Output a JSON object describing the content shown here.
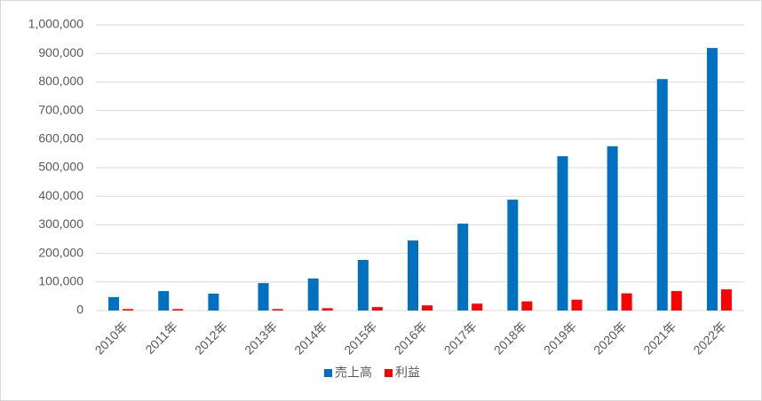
{
  "chart_data": {
    "type": "bar",
    "categories": [
      "2010年",
      "2011年",
      "2012年",
      "2013年",
      "2014年",
      "2015年",
      "2016年",
      "2017年",
      "2018年",
      "2019年",
      "2020年",
      "2021年",
      "2022年"
    ],
    "series": [
      {
        "name": "売上高",
        "color": "#0070c0",
        "values": [
          47000,
          68000,
          59000,
          96000,
          112000,
          177000,
          245000,
          304000,
          388000,
          540000,
          575000,
          810000,
          919000
        ]
      },
      {
        "name": "利益",
        "color": "#ff0000",
        "values": [
          5000,
          5000,
          0,
          5000,
          8000,
          12000,
          18000,
          24000,
          32000,
          38000,
          60000,
          68000,
          74000
        ]
      }
    ],
    "ylim": [
      0,
      1000000
    ],
    "yticks": [
      0,
      {
        "value": 100000,
        "label": "100,000"
      },
      {
        "value": 200000,
        "label": "200,000"
      },
      {
        "value": 300000,
        "label": "300,000"
      },
      {
        "value": 400000,
        "label": "400,000"
      },
      {
        "value": 500000,
        "label": "500,000"
      },
      {
        "value": 600000,
        "label": "600,000"
      },
      {
        "value": 700000,
        "label": "700,000"
      },
      {
        "value": 800000,
        "label": "800,000"
      },
      {
        "value": 900000,
        "label": "900,000"
      },
      {
        "value": 1000000,
        "label": "1,000,000"
      }
    ],
    "grid": true,
    "legend": "bottom"
  }
}
